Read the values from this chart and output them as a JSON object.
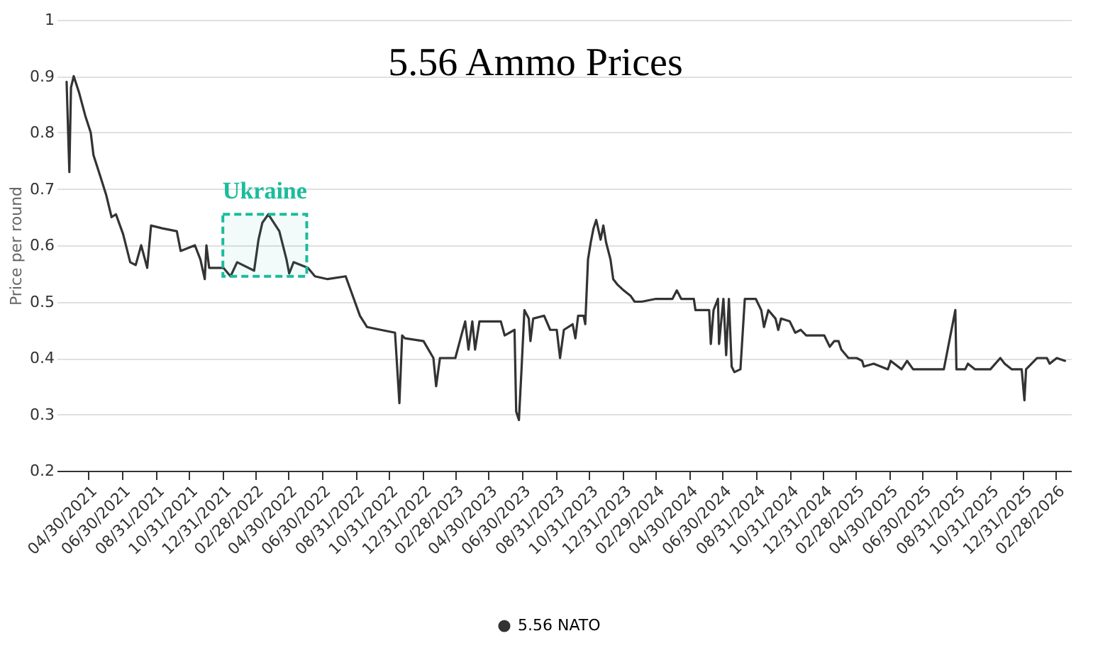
{
  "chart_data": {
    "type": "line",
    "title": "5.56 Ammo Prices",
    "ylabel": "Price per round",
    "xlim": [
      "2021-03-04",
      "2026-03-28"
    ],
    "ylim": [
      0.2,
      1
    ],
    "yticks": [
      0.2,
      0.3,
      0.4,
      0.5,
      0.6,
      0.7,
      0.8,
      0.9,
      1
    ],
    "xticks": [
      {
        "value": "2021-04-30",
        "label": "04/30/2021"
      },
      {
        "value": "2021-06-30",
        "label": "06/30/2021"
      },
      {
        "value": "2021-08-31",
        "label": "08/31/2021"
      },
      {
        "value": "2021-10-31",
        "label": "10/31/2021"
      },
      {
        "value": "2021-12-31",
        "label": "12/31/2021"
      },
      {
        "value": "2022-02-28",
        "label": "02/28/2022"
      },
      {
        "value": "2022-04-30",
        "label": "04/30/2022"
      },
      {
        "value": "2022-06-30",
        "label": "06/30/2022"
      },
      {
        "value": "2022-08-31",
        "label": "08/31/2022"
      },
      {
        "value": "2022-10-31",
        "label": "10/31/2022"
      },
      {
        "value": "2022-12-31",
        "label": "12/31/2022"
      },
      {
        "value": "2023-02-28",
        "label": "02/28/2023"
      },
      {
        "value": "2023-04-30",
        "label": "04/30/2023"
      },
      {
        "value": "2023-06-30",
        "label": "06/30/2023"
      },
      {
        "value": "2023-08-31",
        "label": "08/31/2023"
      },
      {
        "value": "2023-10-31",
        "label": "10/31/2023"
      },
      {
        "value": "2023-12-31",
        "label": "12/31/2023"
      },
      {
        "value": "2024-02-29",
        "label": "02/29/2024"
      },
      {
        "value": "2024-04-30",
        "label": "04/30/2024"
      },
      {
        "value": "2024-06-30",
        "label": "06/30/2024"
      },
      {
        "value": "2024-08-31",
        "label": "08/31/2024"
      },
      {
        "value": "2024-10-31",
        "label": "10/31/2024"
      },
      {
        "value": "2024-12-31",
        "label": "12/31/2024"
      },
      {
        "value": "2025-02-28",
        "label": "02/28/2025"
      },
      {
        "value": "2025-04-30",
        "label": "04/30/2025"
      },
      {
        "value": "2025-06-30",
        "label": "06/30/2025"
      },
      {
        "value": "2025-08-31",
        "label": "08/31/2025"
      },
      {
        "value": "2025-10-31",
        "label": "10/31/2025"
      },
      {
        "value": "2025-12-31",
        "label": "12/31/2025"
      },
      {
        "value": "2026-02-28",
        "label": "02/28/2026"
      }
    ],
    "x": [
      "2021-03-22",
      "2021-03-27",
      "2021-03-30",
      "2021-04-04",
      "2021-04-14",
      "2021-04-25",
      "2021-05-05",
      "2021-05-10",
      "2021-05-20",
      "2021-06-02",
      "2021-06-12",
      "2021-06-20",
      "2021-07-03",
      "2021-07-16",
      "2021-07-26",
      "2021-08-05",
      "2021-08-16",
      "2021-08-23",
      "2021-09-13",
      "2021-10-09",
      "2021-10-16",
      "2021-11-11",
      "2021-11-21",
      "2021-11-29",
      "2021-12-02",
      "2021-12-07",
      "2022-01-02",
      "2022-01-15",
      "2022-01-27",
      "2022-02-27",
      "2022-03-07",
      "2022-03-14",
      "2022-03-25",
      "2022-04-14",
      "2022-04-27",
      "2022-05-02",
      "2022-05-10",
      "2022-06-05",
      "2022-06-18",
      "2022-07-11",
      "2022-08-13",
      "2022-08-26",
      "2022-09-08",
      "2022-09-21",
      "2022-10-16",
      "2022-11-11",
      "2022-11-19",
      "2022-11-24",
      "2022-11-29",
      "2023-01-02",
      "2023-01-20",
      "2023-01-25",
      "2023-02-01",
      "2023-03-01",
      "2023-03-12",
      "2023-03-19",
      "2023-03-25",
      "2023-04-01",
      "2023-04-06",
      "2023-04-14",
      "2023-05-23",
      "2023-05-30",
      "2023-06-17",
      "2023-06-20",
      "2023-06-25",
      "2023-06-30",
      "2023-07-05",
      "2023-07-13",
      "2023-07-16",
      "2023-07-21",
      "2023-08-10",
      "2023-08-21",
      "2023-09-02",
      "2023-09-08",
      "2023-09-15",
      "2023-10-01",
      "2023-10-06",
      "2023-10-11",
      "2023-10-21",
      "2023-10-24",
      "2023-10-29",
      "2023-11-03",
      "2023-11-08",
      "2023-11-13",
      "2023-11-21",
      "2023-11-26",
      "2023-12-01",
      "2023-12-09",
      "2023-12-14",
      "2023-12-22",
      "2024-01-02",
      "2024-01-15",
      "2024-01-22",
      "2024-02-04",
      "2024-03-01",
      "2024-03-31",
      "2024-04-08",
      "2024-04-16",
      "2024-05-09",
      "2024-05-12",
      "2024-06-06",
      "2024-06-09",
      "2024-06-14",
      "2024-06-22",
      "2024-06-24",
      "2024-07-02",
      "2024-07-07",
      "2024-07-12",
      "2024-07-17",
      "2024-07-22",
      "2024-08-02",
      "2024-08-10",
      "2024-08-30",
      "2024-09-09",
      "2024-09-14",
      "2024-09-22",
      "2024-10-05",
      "2024-10-10",
      "2024-10-15",
      "2024-10-31",
      "2024-11-10",
      "2024-11-20",
      "2024-11-30",
      "2025-01-02",
      "2025-01-12",
      "2025-01-20",
      "2025-01-28",
      "2025-02-02",
      "2025-02-15",
      "2025-03-02",
      "2025-03-12",
      "2025-03-15",
      "2025-04-02",
      "2025-04-28",
      "2025-05-03",
      "2025-05-23",
      "2025-06-02",
      "2025-06-13",
      "2025-08-08",
      "2025-08-29",
      "2025-08-31",
      "2025-09-16",
      "2025-09-21",
      "2025-10-04",
      "2025-11-01",
      "2025-11-19",
      "2025-11-27",
      "2025-12-10",
      "2025-12-28",
      "2026-01-02",
      "2026-01-05",
      "2026-01-25",
      "2026-02-12",
      "2026-02-17",
      "2026-03-02",
      "2026-03-17"
    ],
    "series": [
      {
        "name": "5.56 NATO",
        "color": "#333333",
        "values": [
          0.89,
          0.73,
          0.88,
          0.9,
          0.87,
          0.83,
          0.8,
          0.76,
          0.73,
          0.69,
          0.65,
          0.655,
          0.62,
          0.57,
          0.565,
          0.6,
          0.56,
          0.635,
          0.63,
          0.625,
          0.59,
          0.6,
          0.575,
          0.54,
          0.6,
          0.56,
          0.56,
          0.545,
          0.57,
          0.555,
          0.61,
          0.64,
          0.655,
          0.625,
          0.575,
          0.55,
          0.57,
          0.56,
          0.545,
          0.54,
          0.545,
          0.51,
          0.475,
          0.455,
          0.45,
          0.445,
          0.32,
          0.44,
          0.435,
          0.43,
          0.4,
          0.35,
          0.4,
          0.4,
          0.44,
          0.465,
          0.415,
          0.465,
          0.415,
          0.465,
          0.465,
          0.44,
          0.45,
          0.305,
          0.29,
          0.385,
          0.485,
          0.47,
          0.43,
          0.47,
          0.475,
          0.45,
          0.45,
          0.4,
          0.45,
          0.46,
          0.435,
          0.475,
          0.475,
          0.46,
          0.575,
          0.605,
          0.63,
          0.645,
          0.61,
          0.635,
          0.605,
          0.575,
          0.54,
          0.53,
          0.52,
          0.51,
          0.5,
          0.5,
          0.505,
          0.505,
          0.52,
          0.505,
          0.505,
          0.485,
          0.485,
          0.425,
          0.485,
          0.505,
          0.425,
          0.505,
          0.405,
          0.505,
          0.385,
          0.375,
          0.38,
          0.505,
          0.505,
          0.485,
          0.455,
          0.485,
          0.47,
          0.45,
          0.47,
          0.465,
          0.445,
          0.45,
          0.44,
          0.44,
          0.42,
          0.43,
          0.43,
          0.415,
          0.4,
          0.4,
          0.395,
          0.385,
          0.39,
          0.38,
          0.395,
          0.38,
          0.395,
          0.38,
          0.38,
          0.485,
          0.38,
          0.38,
          0.39,
          0.38,
          0.38,
          0.4,
          0.39,
          0.38,
          0.38,
          0.325,
          0.38,
          0.4,
          0.4,
          0.39,
          0.4,
          0.395
        ]
      }
    ],
    "bands": [
      {
        "axis": "x",
        "from": "2022-01-01",
        "to": "2022-06-03",
        "color": "#1abc9c",
        "label": "Ukraine"
      }
    ],
    "grid": "y",
    "legend": "bottom",
    "line_style": "solid"
  }
}
